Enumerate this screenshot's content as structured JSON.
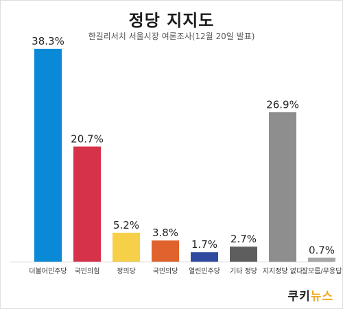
{
  "title": "정당 지지도",
  "subtitle": "한길리서치 서울시장 여론조사(12월 20일 발표)",
  "logo": {
    "text_dark": "쿠키",
    "text_accent": "뉴스",
    "color_dark": "#222222",
    "color_accent": "#f0a81d"
  },
  "chart_data": {
    "type": "bar",
    "categories": [
      "더불어민주당",
      "국민의힘",
      "정의당",
      "국민의당",
      "열린민주당",
      "기타 정당",
      "지지정당 없다",
      "잘모름/무응답"
    ],
    "values": [
      38.3,
      20.7,
      5.2,
      3.8,
      1.7,
      2.7,
      26.9,
      0.7
    ],
    "value_labels": [
      "38.3%",
      "20.7%",
      "5.2%",
      "3.8%",
      "1.7%",
      "2.7%",
      "26.9%",
      "0.7%"
    ],
    "colors": [
      "#0a8ad6",
      "#d6334b",
      "#f6d048",
      "#e0622c",
      "#2f4a9e",
      "#5e5e5e",
      "#8e8e8e",
      "#a6a6a6"
    ],
    "title": "정당 지지도",
    "xlabel": "",
    "ylabel": "",
    "ylim": [
      0,
      38.3
    ],
    "grid": false,
    "legend": "none"
  }
}
